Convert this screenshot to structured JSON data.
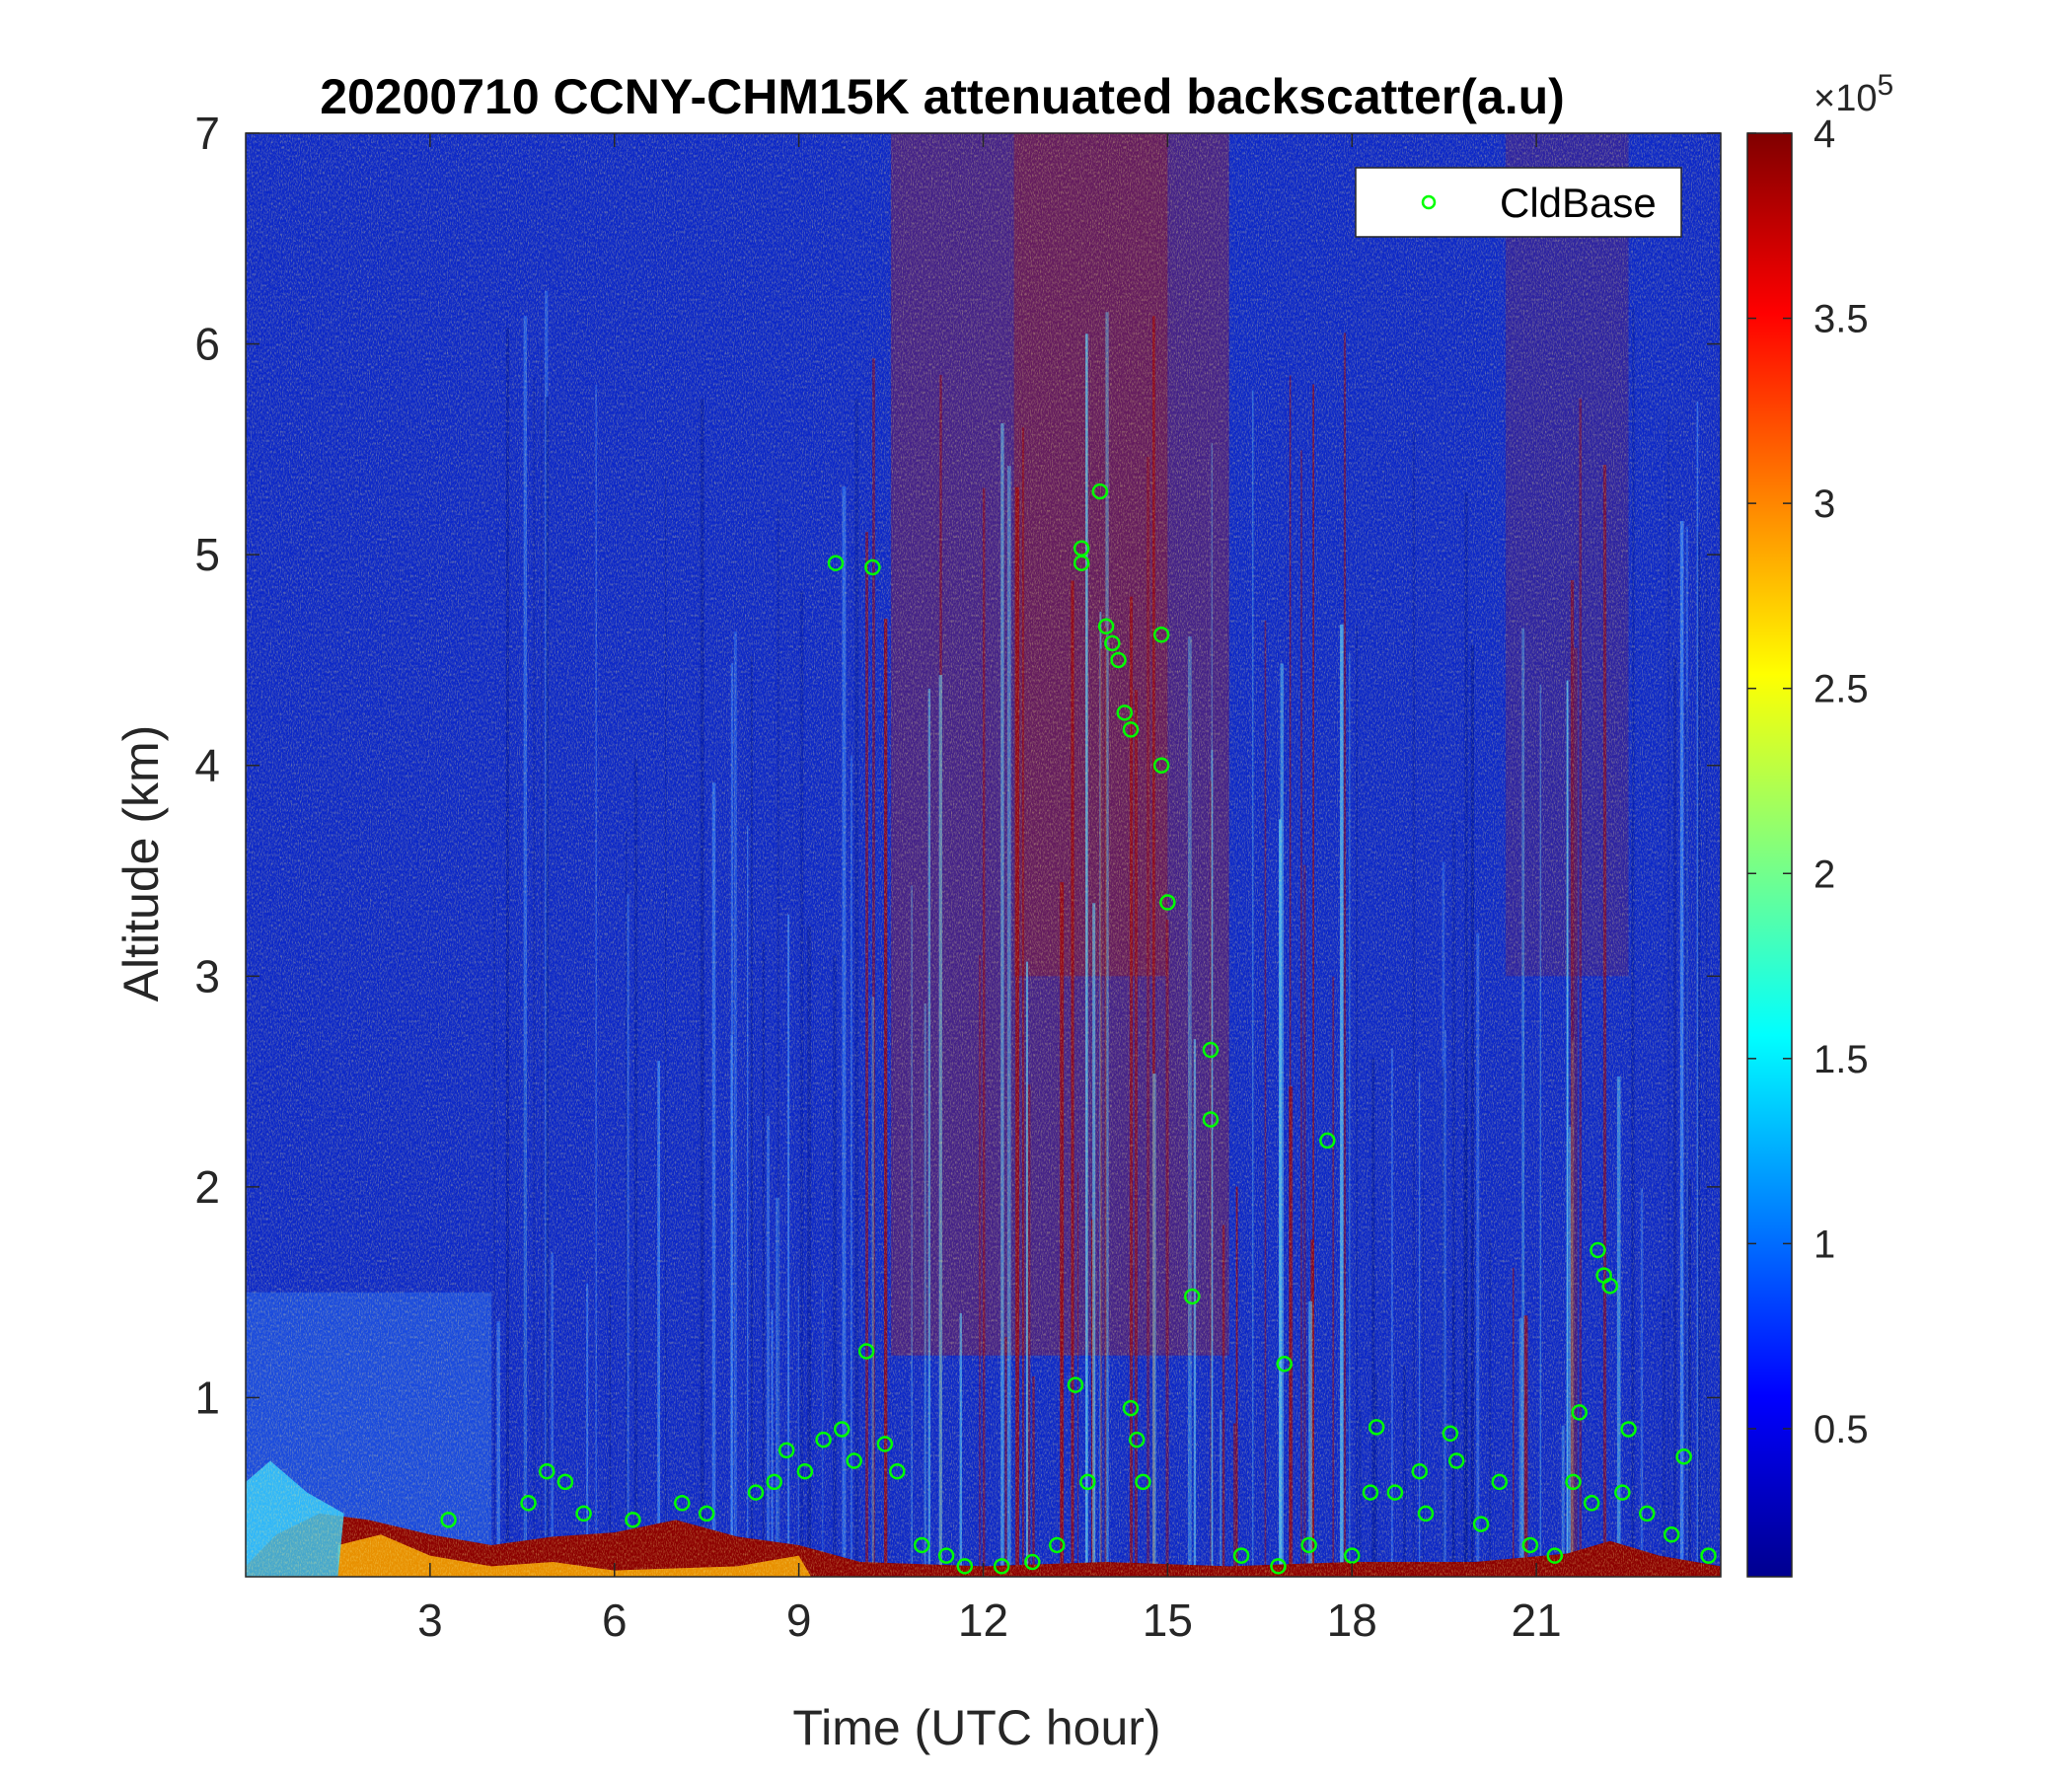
{
  "chart_data": {
    "type": "heatmap",
    "title": "20200710 CCNY-CHM15K attenuated backscatter(a.u)",
    "xlabel": "Time (UTC hour)",
    "ylabel": "Altitude (km)",
    "xlim": [
      0,
      24
    ],
    "ylim": [
      0.15,
      7
    ],
    "xticks": [
      3,
      6,
      9,
      12,
      15,
      18,
      21
    ],
    "yticks": [
      1,
      2,
      3,
      4,
      5,
      6,
      7
    ],
    "colormap": "jet",
    "colorbar": {
      "range": [
        0.1,
        4
      ],
      "ticks": [
        0.5,
        1,
        1.5,
        2,
        2.5,
        3,
        3.5,
        4
      ],
      "tick_labels": [
        "0.5",
        "1",
        "1.5",
        "2",
        "2.5",
        "3",
        "3.5",
        "4"
      ],
      "exponent_label": "×10",
      "exponent_power": "5"
    },
    "legend": {
      "position": "top-right",
      "entries": [
        {
          "name": "CldBase",
          "marker": "circle",
          "color": "#00ff00"
        }
      ]
    },
    "cloud_base_km": {
      "x": [
        3.3,
        4.6,
        4.9,
        5.2,
        5.5,
        6.3,
        7.1,
        7.5,
        8.3,
        8.6,
        8.8,
        9.1,
        9.4,
        9.6,
        9.7,
        9.9,
        10.1,
        10.2,
        10.4,
        10.6,
        11.0,
        11.4,
        11.7,
        12.3,
        12.8,
        13.2,
        13.5,
        13.6,
        13.6,
        13.7,
        13.9,
        14.0,
        14.1,
        14.2,
        14.3,
        14.4,
        14.4,
        14.5,
        14.6,
        14.9,
        14.9,
        15.0,
        15.4,
        15.7,
        15.7,
        16.2,
        16.8,
        16.9,
        17.3,
        17.6,
        18.0,
        18.3,
        18.4,
        18.7,
        19.1,
        19.2,
        19.6,
        19.7,
        20.1,
        20.4,
        20.9,
        21.3,
        21.6,
        21.7,
        21.9,
        22.0,
        22.1,
        22.2,
        22.4,
        22.5,
        22.8,
        23.2,
        23.4,
        23.8
      ],
      "y": [
        0.42,
        0.5,
        0.65,
        0.6,
        0.45,
        0.42,
        0.5,
        0.45,
        0.55,
        0.6,
        0.75,
        0.65,
        0.8,
        4.96,
        0.85,
        0.7,
        1.22,
        4.94,
        0.78,
        0.65,
        0.3,
        0.25,
        0.2,
        0.2,
        0.22,
        0.3,
        1.06,
        5.03,
        4.96,
        0.6,
        5.3,
        4.66,
        4.58,
        4.5,
        4.25,
        4.17,
        0.95,
        0.8,
        0.6,
        4.62,
        4.0,
        3.35,
        1.48,
        2.65,
        2.32,
        0.25,
        0.2,
        1.16,
        0.3,
        2.22,
        0.25,
        0.55,
        0.86,
        0.55,
        0.65,
        0.45,
        0.83,
        0.7,
        0.4,
        0.6,
        0.3,
        0.25,
        0.6,
        0.93,
        0.5,
        1.7,
        1.58,
        1.53,
        0.55,
        0.85,
        0.45,
        0.35,
        0.72,
        0.25
      ]
    }
  }
}
